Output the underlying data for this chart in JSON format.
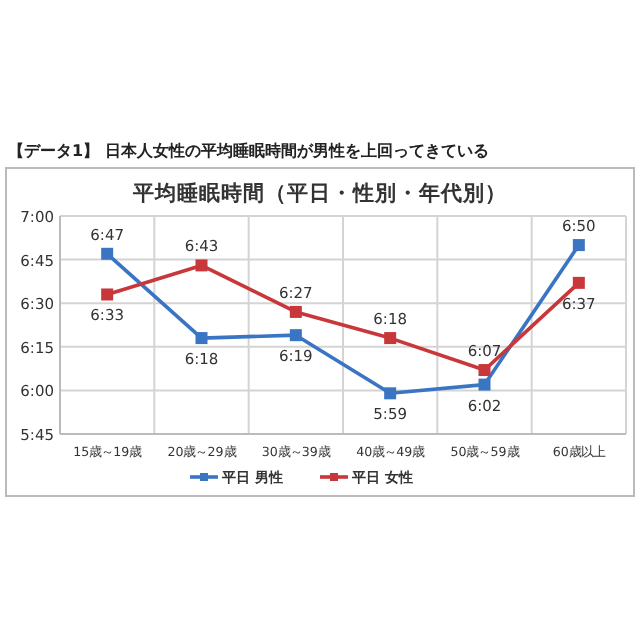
{
  "chart_data": {
    "type": "line",
    "annotations": [
      "【データ1】 日本人女性の平均睡眠時間が男性を上回ってきている"
    ],
    "title": "平均睡眠時間（平日・性別・年代別）",
    "categories": [
      "15歳～19歳",
      "20歳～29歳",
      "30歳～39歳",
      "40歳～49歳",
      "50歳～59歳",
      "60歳以上"
    ],
    "series": [
      {
        "name": "平日 男性",
        "color": "#3a75c4",
        "values": [
          6.7833,
          6.3,
          6.3167,
          5.9833,
          6.0333,
          6.8333
        ],
        "value_labels": [
          "6:47",
          "6:18",
          "6:19",
          "5:59",
          "6:02",
          "6:50"
        ]
      },
      {
        "name": "平日 女性",
        "color": "#c8373a",
        "values": [
          6.55,
          6.7167,
          6.45,
          6.3,
          6.1167,
          6.6167
        ],
        "value_labels": [
          "6:33",
          "6:43",
          "6:27",
          "6:18",
          "6:07",
          "6:37"
        ]
      }
    ],
    "ylim": [
      5.75,
      7
    ],
    "yticks": [
      {
        "value": 5.75,
        "label": "5:45"
      },
      {
        "value": 6,
        "label": "6:00"
      },
      {
        "value": 6.25,
        "label": "6:15"
      },
      {
        "value": 6.5,
        "label": "6:30"
      },
      {
        "value": 6.75,
        "label": "6:45"
      },
      {
        "value": 7,
        "label": "7:00"
      }
    ],
    "grid": true,
    "legend": "bottom",
    "marker": "square",
    "line_style": "solid"
  }
}
